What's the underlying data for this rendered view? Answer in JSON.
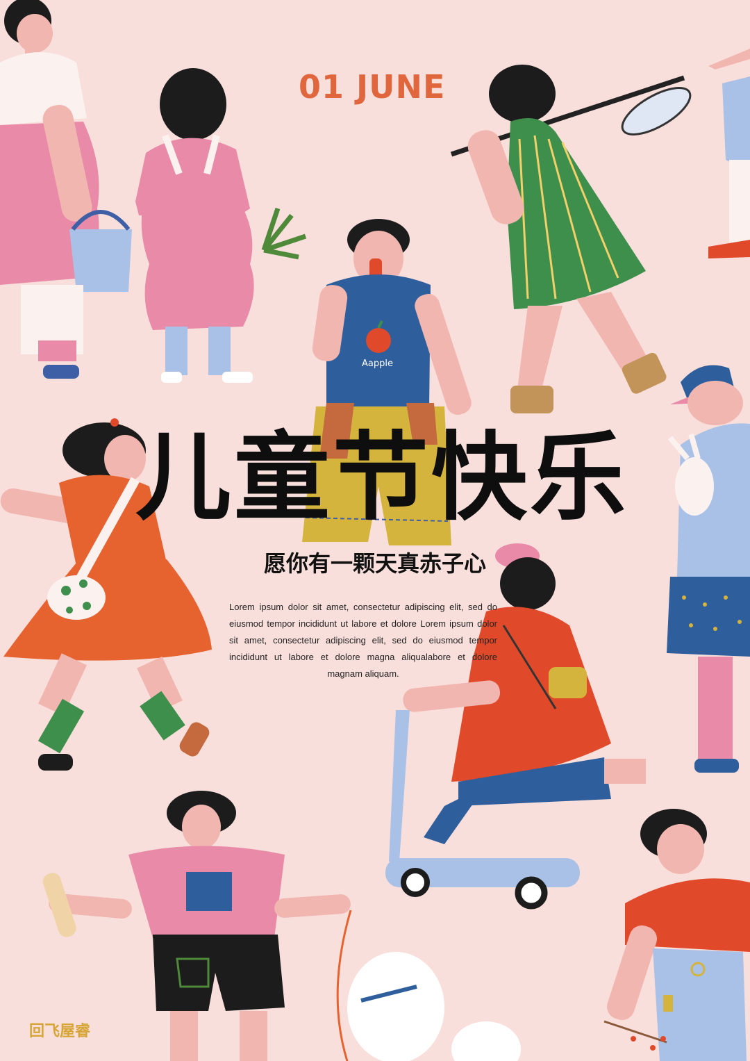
{
  "poster": {
    "date": "01 JUNE",
    "title": "儿童节快乐",
    "subtitle": "愿你有一颗天真赤子心",
    "body_text": "Lorem ipsum dolor sit amet, consectetur adipiscing elit, sed do eiusmod tempor incididunt ut labore et dolore Lorem ipsum dolor sit amet, consectetur adipiscing elit, sed do eiusmod tempor incididunt ut labore et dolore magna aliqualabore et dolore magnam aliquam.",
    "shirt_print": "Aapple",
    "logo": "回飞屋睿"
  },
  "colors": {
    "background": "#f9dfdb",
    "accent": "#e0663e",
    "title": "#0e0e0e",
    "logo": "#d6a536"
  }
}
